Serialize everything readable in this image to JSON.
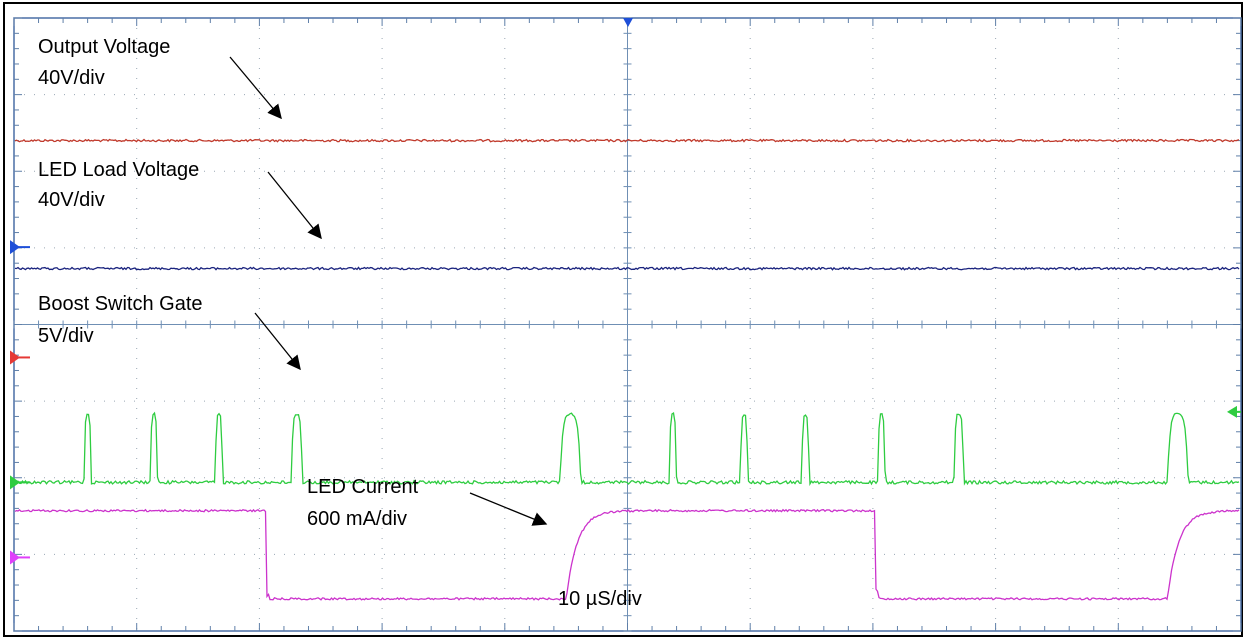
{
  "chart_data": {
    "type": "line",
    "title": "",
    "xlabel": "",
    "ylabel": "",
    "grid": true,
    "divisions": {
      "horizontal": 10,
      "vertical": 8
    },
    "timebase": "10 µS/div",
    "x_range_us": [
      0,
      100
    ],
    "channels": [
      {
        "name": "Output Voltage",
        "scale": "40V/div",
        "color": "#c0392b",
        "trace_level_div": 6.4,
        "waveform": "dc",
        "marker_color": "#e53935"
      },
      {
        "name": "LED Load Voltage",
        "scale": "40V/div",
        "color": "#1a237e",
        "trace_level_div": 4.73,
        "waveform": "dc",
        "marker_color": "#1e4fd8"
      },
      {
        "name": "Boost Switch Gate",
        "scale": "5V/div",
        "color": "#2ecc40",
        "low_level_div": 1.94,
        "high_level_div": 2.83,
        "waveform": "pulses",
        "pulses_us": [
          {
            "start": 5.7,
            "end": 6.3
          },
          {
            "start": 11.1,
            "end": 11.7
          },
          {
            "start": 16.4,
            "end": 17.0
          },
          {
            "start": 22.6,
            "end": 23.5
          },
          {
            "start": 44.5,
            "end": 46.2
          },
          {
            "start": 53.4,
            "end": 54.0
          },
          {
            "start": 59.2,
            "end": 59.8
          },
          {
            "start": 64.2,
            "end": 64.8
          },
          {
            "start": 70.4,
            "end": 71.0
          },
          {
            "start": 76.6,
            "end": 77.4
          },
          {
            "start": 94.0,
            "end": 95.7
          }
        ],
        "marker_color": "#2ecc40"
      },
      {
        "name": "LED Current",
        "scale": "600 mA/div",
        "color": "#cc33cc",
        "low_level_div": 0.42,
        "high_level_div": 1.57,
        "waveform": "square",
        "transitions_us": [
          {
            "t": 0.0,
            "level": "high"
          },
          {
            "t": 20.5,
            "level": "low"
          },
          {
            "t": 45.0,
            "level": "high"
          },
          {
            "t": 70.2,
            "level": "low"
          },
          {
            "t": 94.0,
            "level": "high"
          }
        ],
        "marker_color": "#e040fb"
      }
    ],
    "annotations": [
      {
        "line1": "Output Voltage",
        "line2": "40V/div"
      },
      {
        "line1": "LED Load Voltage",
        "line2": "40V/div"
      },
      {
        "line1": "Boost Switch Gate",
        "line2": "5V/div"
      },
      {
        "line1": "LED Current",
        "line2": "600 mA/div"
      },
      {
        "line1": "10 µS/div"
      }
    ]
  }
}
